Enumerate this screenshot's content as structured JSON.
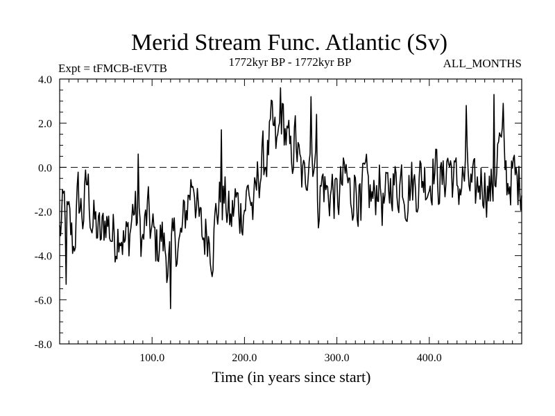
{
  "chart_data": {
    "type": "line",
    "title": "Merid Stream Func. Atlantic (Sv)",
    "subtitle_left": "Expt = tFMCB-tEVTB",
    "subtitle_center": "1772kyr BP - 1772kyr BP",
    "subtitle_right": "ALL_MONTHS",
    "xlabel": "Time (in years since start)",
    "ylabel": "",
    "xlim": [
      0,
      500
    ],
    "ylim": [
      -8,
      4
    ],
    "xticks": [
      100,
      200,
      300,
      400
    ],
    "xtick_labels": [
      "100.0",
      "200.0",
      "300.0",
      "400.0"
    ],
    "yticks": [
      -8,
      -6,
      -4,
      -2,
      0,
      2,
      4
    ],
    "ytick_labels": [
      "-8.0",
      "-6.0",
      "-4.0",
      "-2.0",
      "0.0",
      "2.0",
      "4.0"
    ],
    "reference_line": 0,
    "grid": false,
    "series": [
      {
        "name": "Merid Stream Func. Atlantic",
        "anchors_x": [
          0,
          5,
          10,
          15,
          20,
          25,
          30,
          35,
          40,
          45,
          50,
          55,
          60,
          65,
          70,
          75,
          80,
          85,
          90,
          95,
          100,
          105,
          110,
          115,
          120,
          125,
          130,
          135,
          140,
          145,
          150,
          155,
          160,
          165,
          170,
          175,
          180,
          185,
          190,
          195,
          200,
          205,
          210,
          215,
          220,
          225,
          230,
          235,
          240,
          245,
          250,
          255,
          260,
          265,
          270,
          275,
          280,
          285,
          290,
          295,
          300,
          305,
          310,
          315,
          320,
          325,
          330,
          335,
          340,
          345,
          350,
          355,
          360,
          365,
          370,
          375,
          380,
          385,
          390,
          395,
          400,
          405,
          410,
          415,
          420,
          425,
          430,
          435,
          440,
          445,
          450,
          455,
          460,
          465,
          470,
          475,
          480,
          485,
          490,
          495,
          500
        ],
        "anchors_y": [
          -3.0,
          -1.8,
          -2.6,
          -3.6,
          -1.4,
          -2.2,
          -0.7,
          -2.4,
          -2.8,
          -3.3,
          -2.2,
          -2.9,
          -3.2,
          -2.5,
          -3.5,
          -3.1,
          -1.8,
          -2.6,
          -3.4,
          -2.1,
          -3.0,
          -3.6,
          -3.1,
          -3.9,
          -4.3,
          -3.2,
          -3.6,
          -2.4,
          -1.2,
          -0.3,
          -2.4,
          -3.2,
          -2.8,
          -3.6,
          -2.0,
          -1.3,
          -1.6,
          -2.6,
          -1.5,
          -2.0,
          -1.7,
          -1.0,
          -2.2,
          -0.3,
          0.2,
          0.6,
          1.8,
          0.7,
          2.4,
          1.5,
          0.3,
          1.4,
          -0.2,
          -0.8,
          1.0,
          0.6,
          -1.5,
          -0.6,
          -1.3,
          -1.0,
          -1.6,
          -0.9,
          -0.4,
          -1.4,
          -0.6,
          -1.7,
          -0.8,
          -1.2,
          -1.6,
          -0.4,
          -1.8,
          -1.3,
          -0.5,
          -1.0,
          -0.3,
          -1.2,
          -0.6,
          -0.9,
          -0.5,
          -0.4,
          -0.7,
          0.1,
          -0.5,
          -0.8,
          0.4,
          -0.3,
          -0.9,
          -0.7,
          -0.3,
          -1.0,
          -1.3,
          -0.5,
          -0.6,
          -1.2,
          -0.8,
          1.1,
          0.4,
          -0.7,
          -0.3,
          -0.8,
          -0.5
        ],
        "extremes_x": [
          7,
          85,
          120,
          175,
          239,
          272,
          278,
          326,
          440,
          470,
          480
        ],
        "extremes_y": [
          -5.3,
          0.6,
          -6.4,
          1.7,
          3.6,
          3.2,
          2.4,
          -2.4,
          2.8,
          3.3,
          2.9
        ]
      }
    ]
  }
}
